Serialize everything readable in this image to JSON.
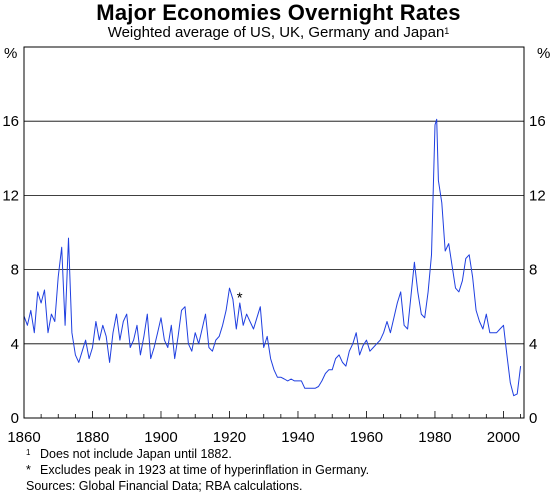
{
  "header": {
    "title": "Major Economies Overnight Rates",
    "subtitle": "Weighted average of US, UK, Germany and Japan",
    "subtitle_note_marker": "1"
  },
  "footnotes": [
    {
      "marker": "1",
      "text": "Does not include Japan until 1882."
    },
    {
      "marker": "*",
      "text": "Excludes peak in 1923 at time of hyperinflation in Germany."
    }
  ],
  "sources": "Sources: Global Financial Data; RBA calculations.",
  "colors": {
    "series": "#1f3fe0",
    "grid": "#000000"
  },
  "chart_data": {
    "type": "line",
    "title": "Major Economies Overnight Rates",
    "subtitle": "Weighted average of US, UK, Germany and Japan",
    "ylabel_left": "%",
    "ylabel_right": "%",
    "xlim": [
      1860,
      2006
    ],
    "ylim": [
      0,
      20
    ],
    "x_ticks": [
      1860,
      1880,
      1900,
      1920,
      1940,
      1960,
      1980,
      2000
    ],
    "y_ticks": [
      0,
      4,
      8,
      12,
      16
    ],
    "grid": "horizontal",
    "annotation": {
      "text": "*",
      "x": 1923,
      "y": 6.6
    },
    "series": [
      {
        "x": [
          1860,
          1861,
          1862,
          1863,
          1864,
          1865,
          1866,
          1867,
          1868,
          1869,
          1870,
          1871,
          1872,
          1873,
          1874,
          1875,
          1876,
          1877,
          1878,
          1879,
          1880,
          1881,
          1882,
          1883,
          1884,
          1885,
          1886,
          1887,
          1888,
          1889,
          1890,
          1891,
          1892,
          1893,
          1894,
          1895,
          1896,
          1897,
          1898,
          1899,
          1900,
          1901,
          1902,
          1903,
          1904,
          1905,
          1906,
          1907,
          1908,
          1909,
          1910,
          1911,
          1912,
          1913,
          1914,
          1915,
          1916,
          1917,
          1918,
          1919,
          1920,
          1921,
          1922,
          1923,
          1924,
          1925,
          1926,
          1927,
          1928,
          1929,
          1930,
          1931,
          1932,
          1933,
          1934,
          1935,
          1936,
          1937,
          1938,
          1939,
          1940,
          1941,
          1942,
          1943,
          1944,
          1945,
          1946,
          1947,
          1948,
          1949,
          1950,
          1951,
          1952,
          1953,
          1954,
          1955,
          1956,
          1957,
          1958,
          1959,
          1960,
          1961,
          1962,
          1963,
          1964,
          1965,
          1966,
          1967,
          1968,
          1969,
          1970,
          1971,
          1972,
          1973,
          1974,
          1975,
          1976,
          1977,
          1978,
          1979,
          1980,
          1980.5,
          1981,
          1982,
          1983,
          1984,
          1985,
          1986,
          1987,
          1988,
          1989,
          1990,
          1991,
          1992,
          1993,
          1994,
          1995,
          1996,
          1997,
          1998,
          1999,
          2000,
          2001,
          2002,
          2003,
          2004,
          2005
        ],
        "values": [
          5.5,
          5.0,
          5.8,
          4.6,
          6.8,
          6.2,
          6.9,
          4.6,
          5.6,
          5.2,
          7.6,
          9.2,
          5.0,
          9.7,
          4.6,
          3.4,
          3.0,
          3.6,
          4.2,
          3.2,
          3.8,
          5.2,
          4.2,
          5.0,
          4.4,
          3.0,
          4.6,
          5.6,
          4.2,
          5.2,
          5.6,
          3.8,
          4.2,
          5.0,
          3.4,
          4.4,
          5.6,
          3.2,
          3.8,
          4.6,
          5.4,
          4.2,
          3.8,
          5.0,
          3.2,
          4.4,
          5.8,
          6.0,
          4.0,
          3.6,
          4.6,
          4.0,
          4.8,
          5.6,
          3.8,
          3.6,
          4.2,
          4.4,
          5.0,
          5.8,
          7.0,
          6.4,
          4.8,
          6.2,
          5.0,
          5.6,
          5.2,
          4.8,
          5.4,
          6.0,
          3.8,
          4.4,
          3.2,
          2.6,
          2.2,
          2.2,
          2.1,
          2.0,
          2.1,
          2.0,
          2.0,
          2.0,
          1.6,
          1.6,
          1.6,
          1.6,
          1.7,
          2.0,
          2.4,
          2.6,
          2.6,
          3.2,
          3.4,
          3.0,
          2.8,
          3.6,
          4.0,
          4.6,
          3.4,
          3.9,
          4.2,
          3.6,
          3.8,
          4.0,
          4.2,
          4.6,
          5.2,
          4.6,
          5.4,
          6.2,
          6.8,
          5.0,
          4.8,
          6.6,
          8.4,
          6.8,
          5.6,
          5.4,
          6.8,
          8.8,
          15.8,
          16.1,
          12.8,
          11.6,
          9.0,
          9.4,
          8.2,
          7.0,
          6.8,
          7.4,
          8.6,
          8.8,
          7.6,
          5.8,
          5.2,
          4.8,
          5.6,
          4.6,
          4.6,
          4.6,
          4.8,
          5.0,
          3.4,
          1.9,
          1.2,
          1.3,
          2.8
        ]
      }
    ]
  }
}
